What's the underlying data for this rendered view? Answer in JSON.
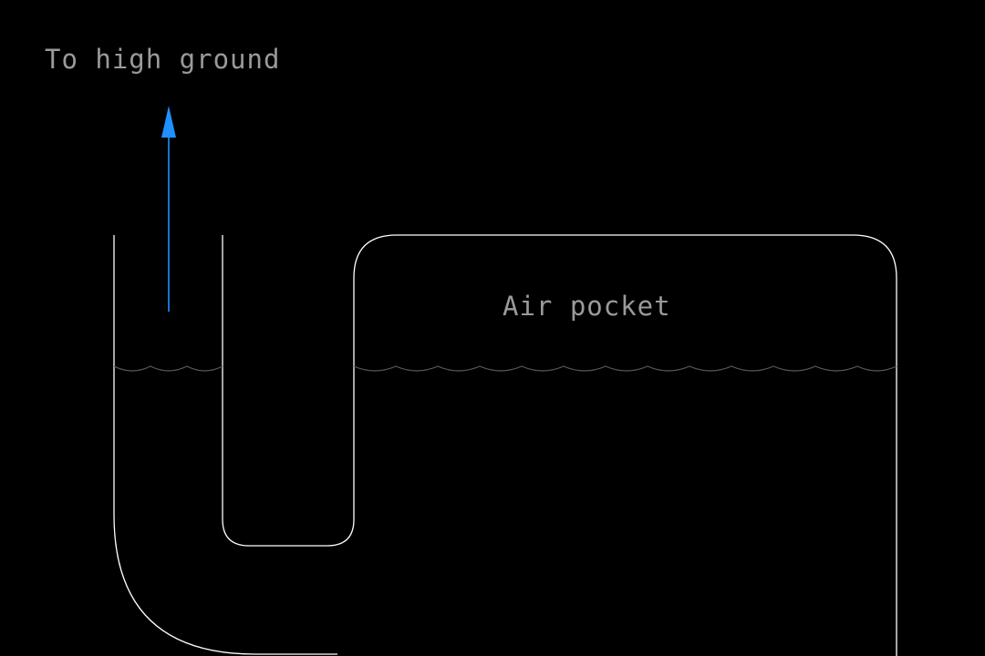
{
  "labels": {
    "high_ground": "To high ground",
    "air_pocket": "Air pocket"
  },
  "colors": {
    "background": "#000000",
    "outline": "#ffffff",
    "text": "#9a9a9a",
    "arrow": "#1e90ff",
    "water_line": "#5a5a5a"
  },
  "icons": {
    "arrow": "arrow-up-icon"
  }
}
